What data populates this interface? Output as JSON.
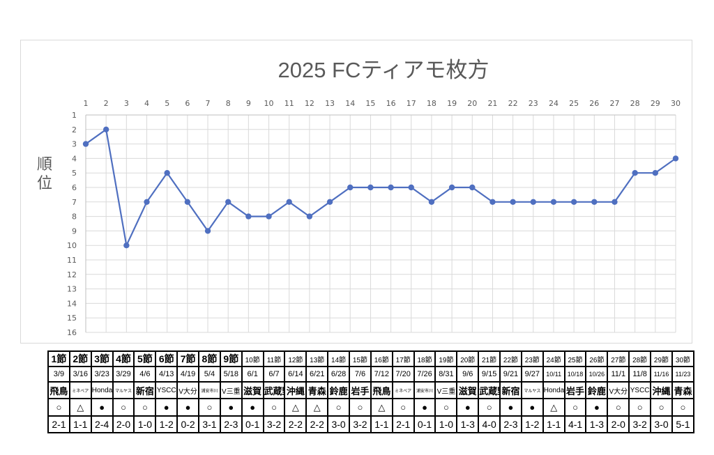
{
  "chart_data": {
    "type": "line",
    "title": "2025 FCティアモ枚方",
    "ylabel": "順位",
    "xlabel": "",
    "x": [
      1,
      2,
      3,
      4,
      5,
      6,
      7,
      8,
      9,
      10,
      11,
      12,
      13,
      14,
      15,
      16,
      17,
      18,
      19,
      20,
      21,
      22,
      23,
      24,
      25,
      26,
      27,
      28,
      29,
      30
    ],
    "series": [
      {
        "values": [
          3,
          2,
          10,
          7,
          5,
          7,
          9,
          7,
          8,
          8,
          7,
          8,
          7,
          6,
          6,
          6,
          6,
          7,
          6,
          6,
          7,
          7,
          7,
          7,
          7,
          7,
          7,
          5,
          5,
          4
        ]
      }
    ],
    "xlim": [
      1,
      30
    ],
    "ylim": [
      1,
      16
    ],
    "y_inverted": true,
    "x_axis_position": "top",
    "grid": true,
    "line_color": "#4f6fc0"
  },
  "table": {
    "rounds": [
      "1節",
      "2節",
      "3節",
      "4節",
      "5節",
      "6節",
      "7節",
      "8節",
      "9節",
      "10節",
      "11節",
      "12節",
      "13節",
      "14節",
      "15節",
      "16節",
      "17節",
      "18節",
      "19節",
      "20節",
      "21節",
      "22節",
      "23節",
      "24節",
      "25節",
      "26節",
      "27節",
      "28節",
      "29節",
      "30節"
    ],
    "dates": [
      "3/9",
      "3/16",
      "3/23",
      "3/29",
      "4/6",
      "4/13",
      "4/19",
      "5/4",
      "5/18",
      "6/1",
      "6/7",
      "6/14",
      "6/21",
      "6/28",
      "7/6",
      "7/12",
      "7/20",
      "7/26",
      "8/31",
      "9/6",
      "9/15",
      "9/21",
      "9/27",
      "10/11",
      "10/18",
      "10/26",
      "11/1",
      "11/8",
      "11/16",
      "11/23"
    ],
    "opponents": [
      "飛鳥",
      "ミネベア",
      "Honda",
      "マルヤス",
      "新宿",
      "YSCC",
      "V大分",
      "浦安市川",
      "V三重",
      "滋賀",
      "武蔵野",
      "沖縄",
      "青森",
      "鈴鹿",
      "岩手",
      "飛鳥",
      "ミネベア",
      "浦安市川",
      "V三重",
      "滋賀",
      "武蔵野",
      "新宿",
      "マルヤス",
      "Honda",
      "岩手",
      "鈴鹿",
      "V大分",
      "YSCC",
      "沖縄",
      "青森"
    ],
    "results": [
      "○",
      "△",
      "●",
      "○",
      "○",
      "●",
      "●",
      "○",
      "●",
      "●",
      "○",
      "△",
      "△",
      "○",
      "○",
      "△",
      "○",
      "●",
      "○",
      "●",
      "○",
      "●",
      "●",
      "△",
      "○",
      "●",
      "○",
      "○",
      "○",
      "○"
    ],
    "scores": [
      "2-1",
      "1-1",
      "2-4",
      "2-0",
      "1-0",
      "1-2",
      "0-2",
      "3-1",
      "2-3",
      "0-1",
      "3-2",
      "2-2",
      "2-2",
      "3-0",
      "3-2",
      "1-1",
      "2-1",
      "0-1",
      "1-0",
      "1-3",
      "4-0",
      "2-3",
      "1-2",
      "1-1",
      "4-1",
      "1-3",
      "2-0",
      "3-2",
      "3-0",
      "5-1"
    ]
  }
}
